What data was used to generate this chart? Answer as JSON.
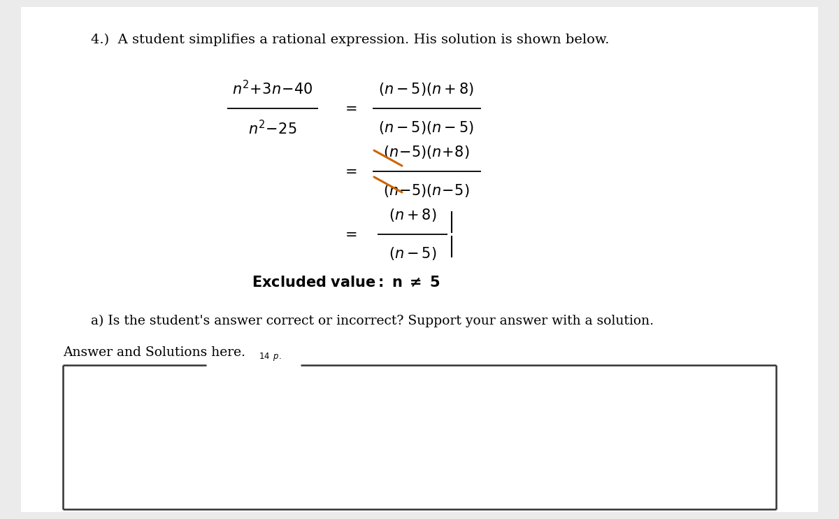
{
  "bg_color": "#ebebeb",
  "page_bg": "#ffffff",
  "title_text": "4.)  A student simplifies a rational expression. His solution is shown below.",
  "title_fontsize": 14,
  "orange_color": "#cc6600",
  "math_fontsize": 15,
  "question_text": "a) Is the student's answer correct or incorrect? Support your answer with a solution.",
  "answer_label": "Answer and Solutions here.",
  "pts_label": "14 p."
}
